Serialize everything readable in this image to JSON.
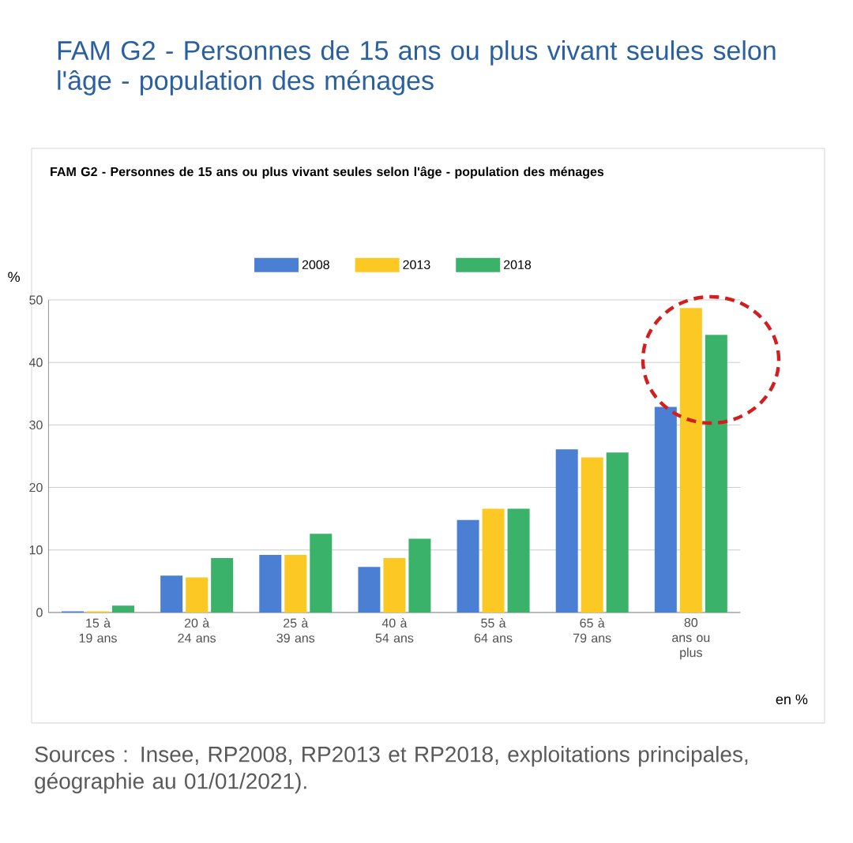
{
  "chart_data": {
    "type": "bar",
    "title": "FAM G2 - Personnes de 15 ans ou plus vivant seules selon l'âge - population des ménages",
    "subtitle": "FAM G2 - Personnes de 15 ans ou plus vivant seules selon l'âge - population des ménages",
    "ylabel": "%",
    "categories": [
      "15 à 19 ans",
      "20 à 24 ans",
      "25 à 39 ans",
      "40 à 54 ans",
      "55 à 64 ans",
      "65 à 79 ans",
      "80 ans ou plus"
    ],
    "series": [
      {
        "name": "2008",
        "color": "#4a7fd4",
        "values": [
          0.2,
          5.9,
          9.2,
          7.3,
          14.8,
          26.1,
          32.9
        ]
      },
      {
        "name": "2013",
        "color": "#fcc924",
        "values": [
          0.2,
          5.6,
          9.2,
          8.7,
          16.6,
          24.8,
          48.7
        ]
      },
      {
        "name": "2018",
        "color": "#3bb26a",
        "values": [
          1.1,
          8.7,
          12.6,
          11.8,
          16.6,
          25.6,
          44.4
        ]
      }
    ],
    "ylim": [
      0,
      50
    ],
    "yticks": [
      0,
      10,
      20,
      30,
      40,
      50
    ],
    "grid": "y",
    "legend": "top",
    "annotations": [
      "en %",
      "Sources : Insee, RP2008, RP2013 et RP2018, exploitations principales, géographie au 01/01/2021)."
    ]
  }
}
